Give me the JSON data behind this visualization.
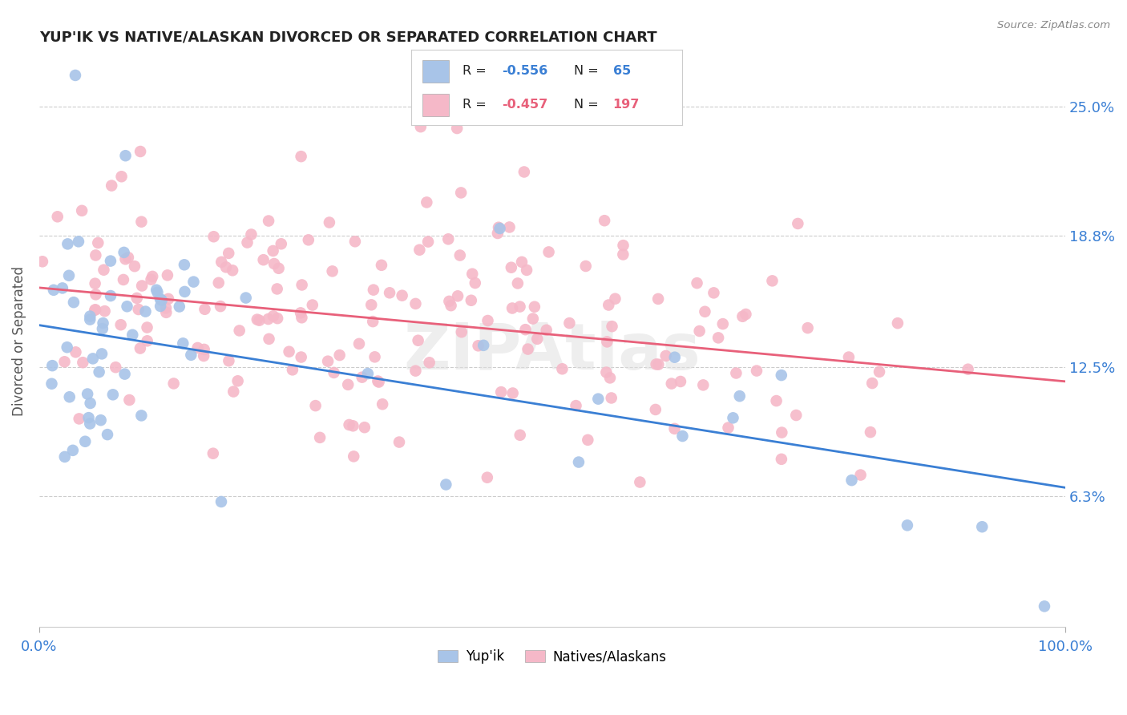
{
  "title": "YUP'IK VS NATIVE/ALASKAN DIVORCED OR SEPARATED CORRELATION CHART",
  "source": "Source: ZipAtlas.com",
  "ylabel": "Divorced or Separated",
  "yticks": [
    "6.3%",
    "12.5%",
    "18.8%",
    "25.0%"
  ],
  "ytick_values": [
    0.063,
    0.125,
    0.188,
    0.25
  ],
  "xlim": [
    0.0,
    1.0
  ],
  "ylim": [
    0.0,
    0.275
  ],
  "legend_r_blue": "-0.556",
  "legend_n_blue": "65",
  "legend_r_pink": "-0.457",
  "legend_n_pink": "197",
  "blue_scatter_color": "#a8c4e8",
  "pink_scatter_color": "#f5b8c8",
  "blue_line_color": "#3a7fd4",
  "pink_line_color": "#e8607a",
  "text_color": "#3a7fd4",
  "label_color": "#555555",
  "background_color": "#ffffff",
  "grid_color": "#cccccc",
  "blue_line_start_y": 0.145,
  "blue_line_end_y": 0.067,
  "pink_line_start_y": 0.163,
  "pink_line_end_y": 0.118,
  "watermark": "ZIPAtlas"
}
